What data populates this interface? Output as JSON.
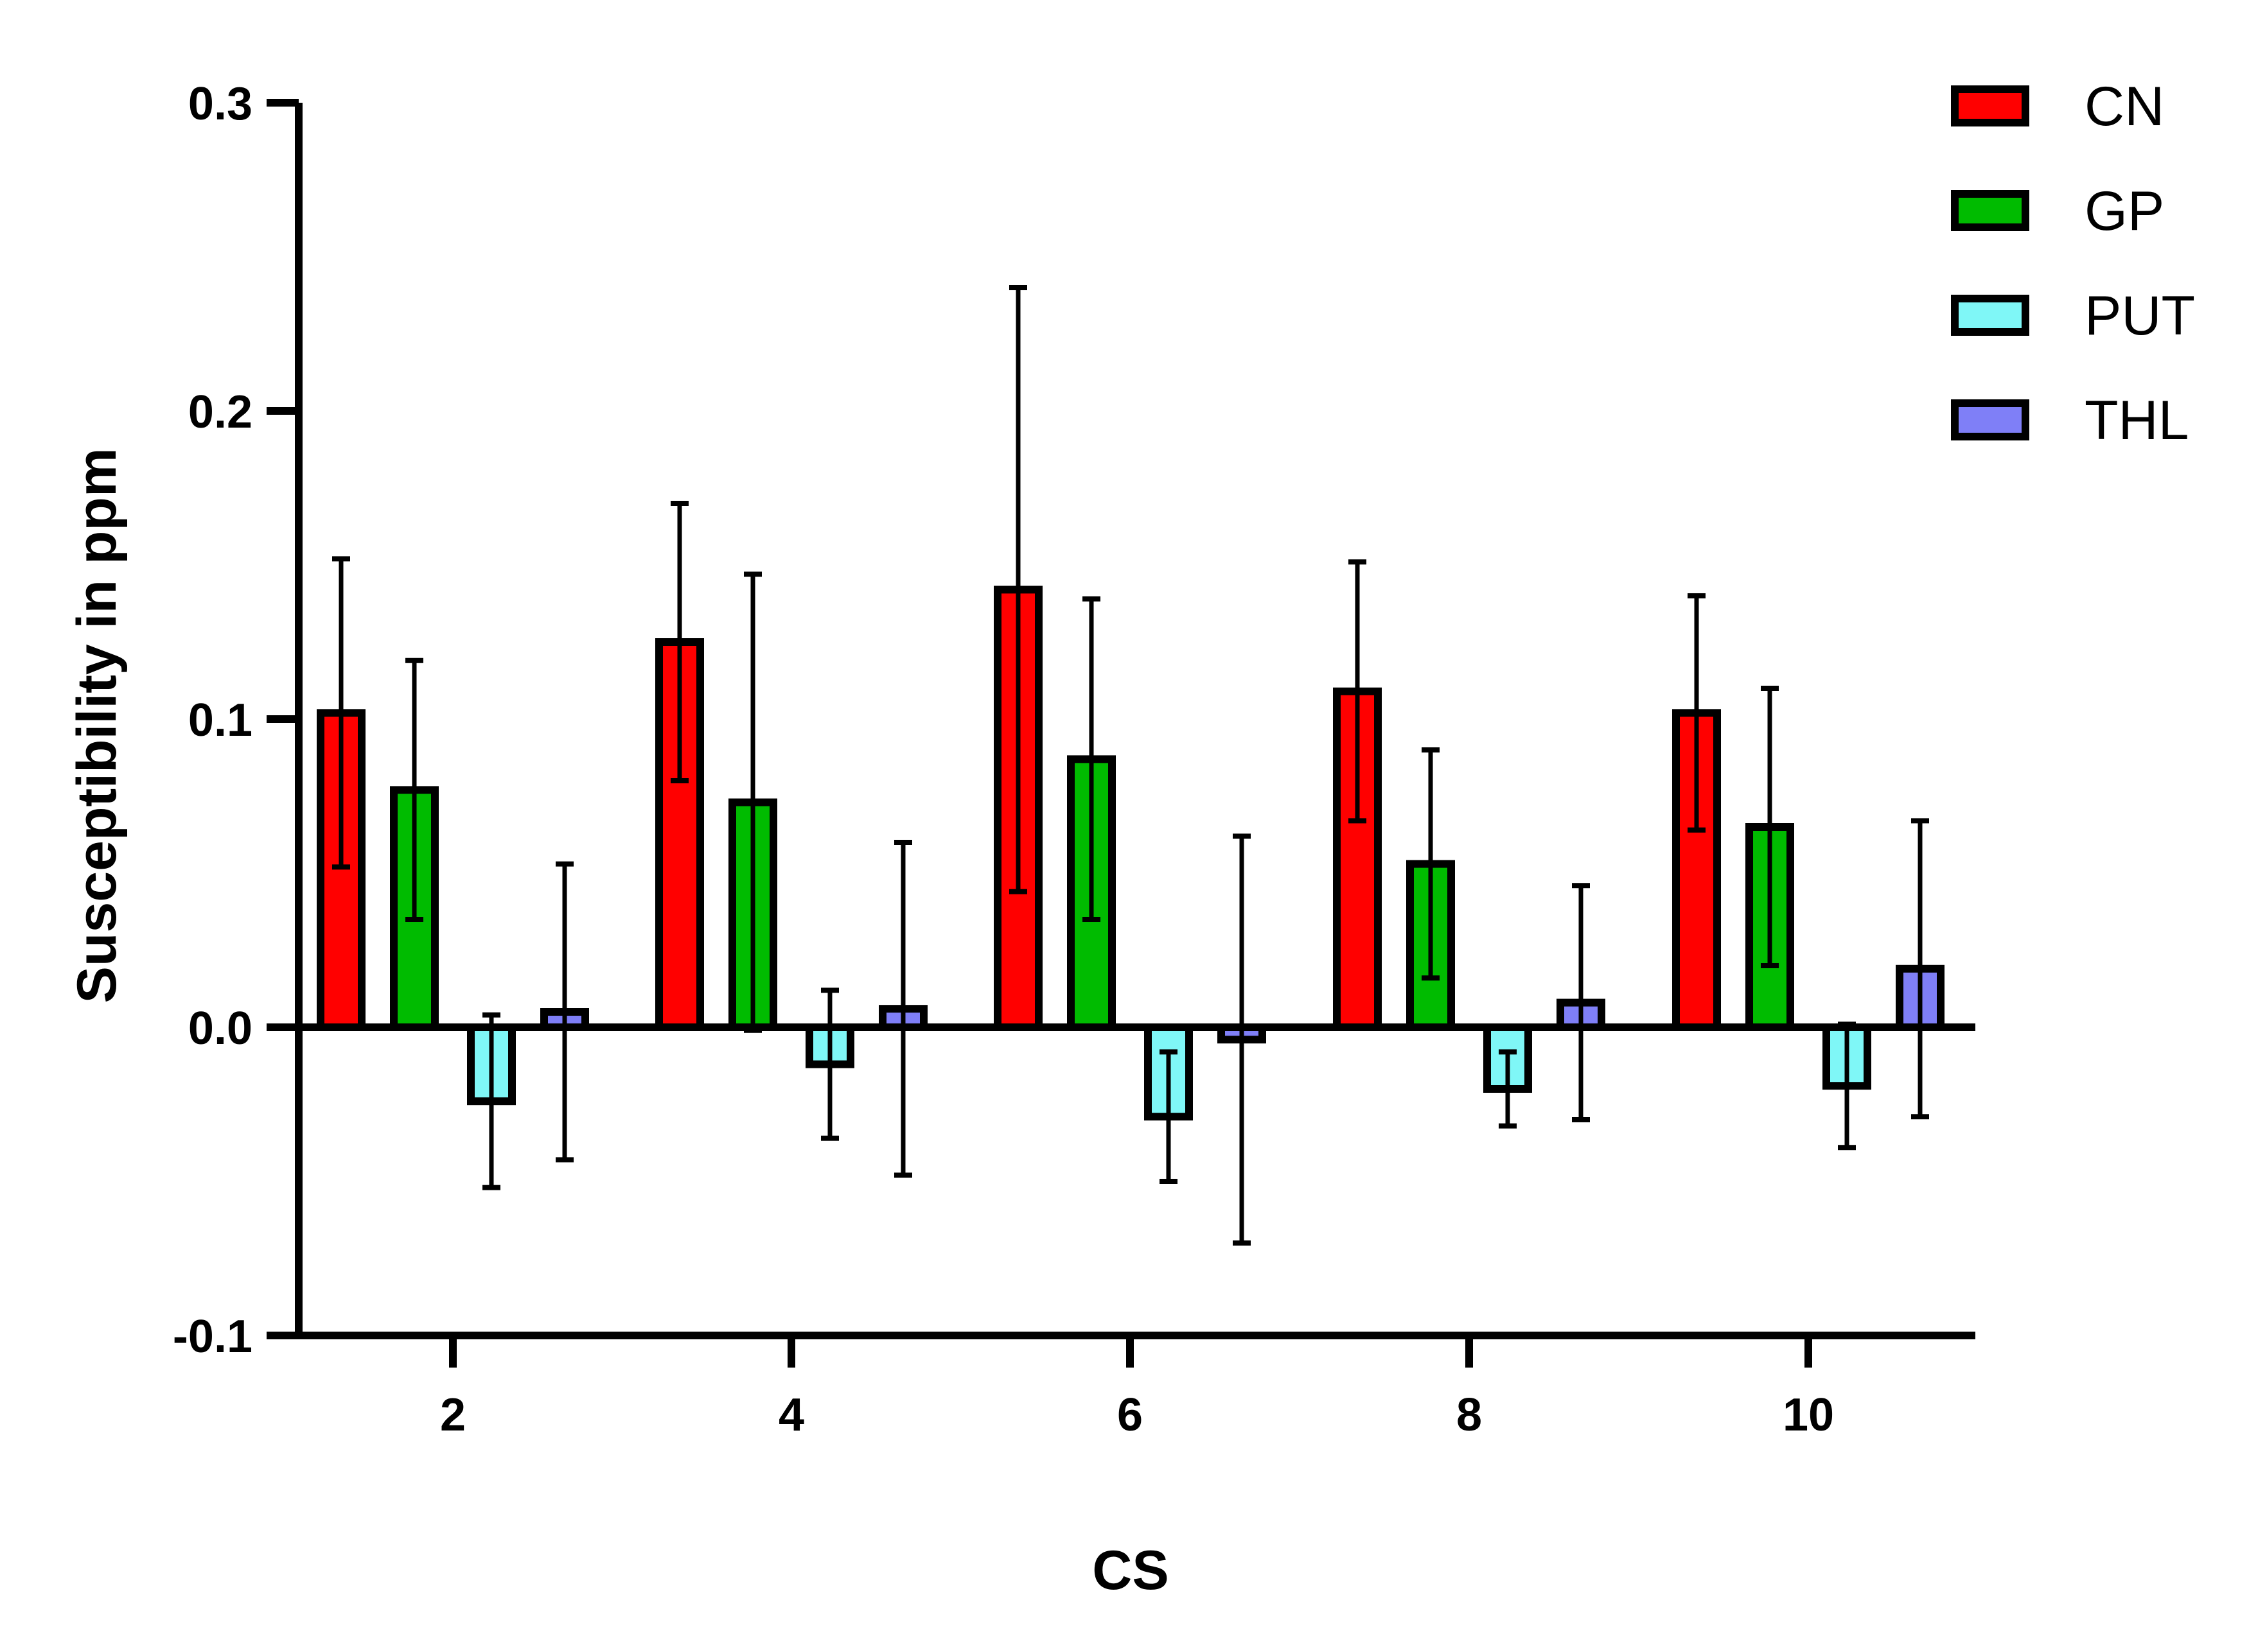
{
  "chart_data": {
    "type": "bar",
    "title": "",
    "xlabel": "CS",
    "ylabel": "Susceptibility in ppm",
    "ylim": [
      -0.1,
      0.3
    ],
    "yticks": [
      -0.1,
      0.0,
      0.1,
      0.2,
      0.3
    ],
    "ytick_labels": [
      "-0.1",
      "0.0",
      "0.1",
      "0.2",
      "0.3"
    ],
    "categories": [
      "2",
      "4",
      "6",
      "8",
      "10"
    ],
    "grid": false,
    "legend_position": "top-right",
    "error_bars": true,
    "series": [
      {
        "name": "CN",
        "color": "#ff0000",
        "values": [
          0.102,
          0.125,
          0.142,
          0.109,
          0.102
        ],
        "errors": [
          0.05,
          0.045,
          0.098,
          0.042,
          0.038
        ]
      },
      {
        "name": "GP",
        "color": "#00bb00",
        "values": [
          0.077,
          0.073,
          0.087,
          0.053,
          0.065
        ],
        "errors": [
          0.042,
          0.074,
          0.052,
          0.037,
          0.045
        ]
      },
      {
        "name": "PUT",
        "color": "#7ff7f7",
        "values": [
          -0.024,
          -0.012,
          -0.029,
          -0.02,
          -0.019
        ],
        "errors": [
          0.028,
          0.024,
          0.021,
          0.012,
          0.02
        ]
      },
      {
        "name": "THL",
        "color": "#7f7ff7",
        "values": [
          0.005,
          0.006,
          -0.004,
          0.008,
          0.019
        ],
        "errors": [
          0.048,
          0.054,
          0.066,
          0.038,
          0.048
        ]
      }
    ]
  }
}
